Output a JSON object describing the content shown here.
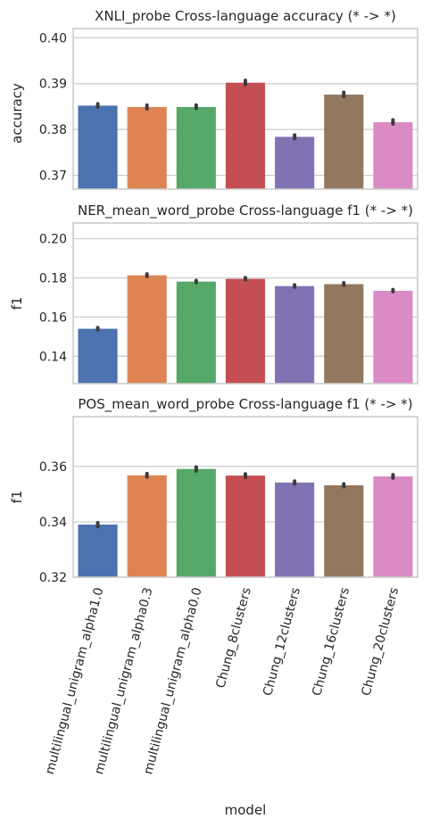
{
  "colors": [
    "#4c72b0",
    "#dd8452",
    "#55a868",
    "#c44e52",
    "#8172b3",
    "#937860",
    "#da8bc3"
  ],
  "chart_data": [
    {
      "type": "bar",
      "title": "XNLI_probe Cross-language accuracy (* -> *)",
      "ylabel": "accuracy",
      "xlabel": "",
      "ylim": [
        0.367,
        0.402
      ],
      "yticks": [
        0.37,
        0.38,
        0.39,
        0.4
      ],
      "ytick_labels": [
        "0.37",
        "0.38",
        "0.39",
        "0.40"
      ],
      "categories": [
        "multilingual_unigram_alpha1.0",
        "multilingual_unigram_alpha0.3",
        "multilingual_unigram_alpha0.0",
        "Chung_8clusters",
        "Chung_12clusters",
        "Chung_16clusters",
        "Chung_20clusters"
      ],
      "values": [
        0.3852,
        0.3849,
        0.3849,
        0.3902,
        0.3784,
        0.3876,
        0.3816
      ],
      "errors": [
        [
          0.3849,
          0.3856
        ],
        [
          0.3845,
          0.3853
        ],
        [
          0.3846,
          0.3853
        ],
        [
          0.3898,
          0.3907
        ],
        [
          0.378,
          0.3788
        ],
        [
          0.3872,
          0.3881
        ],
        [
          0.3812,
          0.3821
        ]
      ],
      "grid": true
    },
    {
      "type": "bar",
      "title": "NER_mean_word_probe Cross-language f1 (* -> *)",
      "ylabel": "f1",
      "xlabel": "",
      "ylim": [
        0.126,
        0.208
      ],
      "yticks": [
        0.14,
        0.16,
        0.18,
        0.2
      ],
      "ytick_labels": [
        "0.14",
        "0.16",
        "0.18",
        "0.20"
      ],
      "categories": [
        "multilingual_unigram_alpha1.0",
        "multilingual_unigram_alpha0.3",
        "multilingual_unigram_alpha0.0",
        "Chung_8clusters",
        "Chung_12clusters",
        "Chung_16clusters",
        "Chung_20clusters"
      ],
      "values": [
        0.154,
        0.1813,
        0.1781,
        0.1795,
        0.1758,
        0.1768,
        0.1734
      ],
      "errors": [
        [
          0.1535,
          0.1546
        ],
        [
          0.1808,
          0.182
        ],
        [
          0.1776,
          0.1787
        ],
        [
          0.179,
          0.1801
        ],
        [
          0.1753,
          0.1764
        ],
        [
          0.1762,
          0.1775
        ],
        [
          0.173,
          0.174
        ]
      ],
      "grid": true
    },
    {
      "type": "bar",
      "title": "POS_mean_word_probe Cross-language f1 (* -> *)",
      "ylabel": "f1",
      "xlabel": "model",
      "ylim": [
        0.32,
        0.378
      ],
      "yticks": [
        0.32,
        0.34,
        0.36
      ],
      "ytick_labels": [
        "0.32",
        "0.34",
        "0.36"
      ],
      "categories": [
        "multilingual_unigram_alpha1.0",
        "multilingual_unigram_alpha0.3",
        "multilingual_unigram_alpha0.0",
        "Chung_8clusters",
        "Chung_12clusters",
        "Chung_16clusters",
        "Chung_20clusters"
      ],
      "values": [
        0.339,
        0.3568,
        0.3591,
        0.3567,
        0.3542,
        0.3532,
        0.3564
      ],
      "errors": [
        [
          0.3383,
          0.3397
        ],
        [
          0.3562,
          0.3574
        ],
        [
          0.3584,
          0.3598
        ],
        [
          0.3561,
          0.3573
        ],
        [
          0.3537,
          0.3547
        ],
        [
          0.3527,
          0.3537
        ],
        [
          0.3558,
          0.357
        ]
      ],
      "grid": true
    }
  ]
}
